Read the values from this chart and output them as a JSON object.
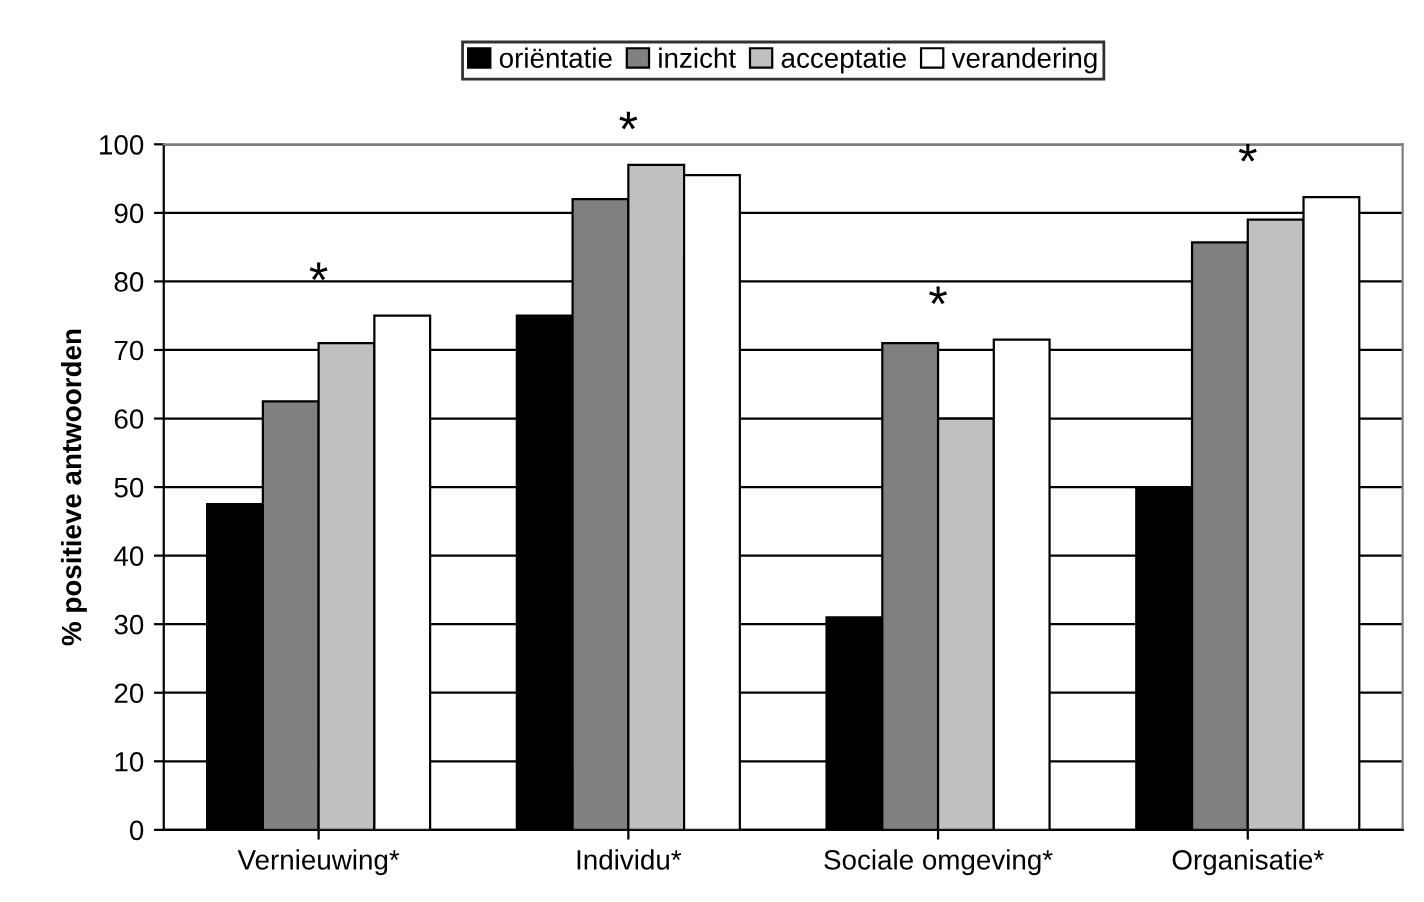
{
  "chart_data": {
    "type": "bar",
    "ylabel": "% positieve antwoorden",
    "categories": [
      "Vernieuwing*",
      "Individu*",
      "Sociale omgeving*",
      "Organisatie*"
    ],
    "series": [
      {
        "name": "oriëntatie",
        "color": "#000000",
        "values": [
          47.5,
          75,
          31,
          50
        ]
      },
      {
        "name": "inzicht",
        "color": "#808080",
        "values": [
          62.5,
          92,
          71,
          85.7
        ]
      },
      {
        "name": "acceptatie",
        "color": "#c0c0c0",
        "values": [
          71,
          97,
          60,
          89
        ]
      },
      {
        "name": "verandering",
        "color": "#ffffff",
        "values": [
          75,
          95.5,
          71.5,
          92.3
        ]
      }
    ],
    "annotations": [
      "*",
      "*",
      "*",
      "*"
    ],
    "ylim": [
      0,
      100
    ],
    "yticks": [
      0,
      10,
      20,
      30,
      40,
      50,
      60,
      70,
      80,
      90,
      100
    ],
    "grid": "y",
    "legend": "top"
  }
}
